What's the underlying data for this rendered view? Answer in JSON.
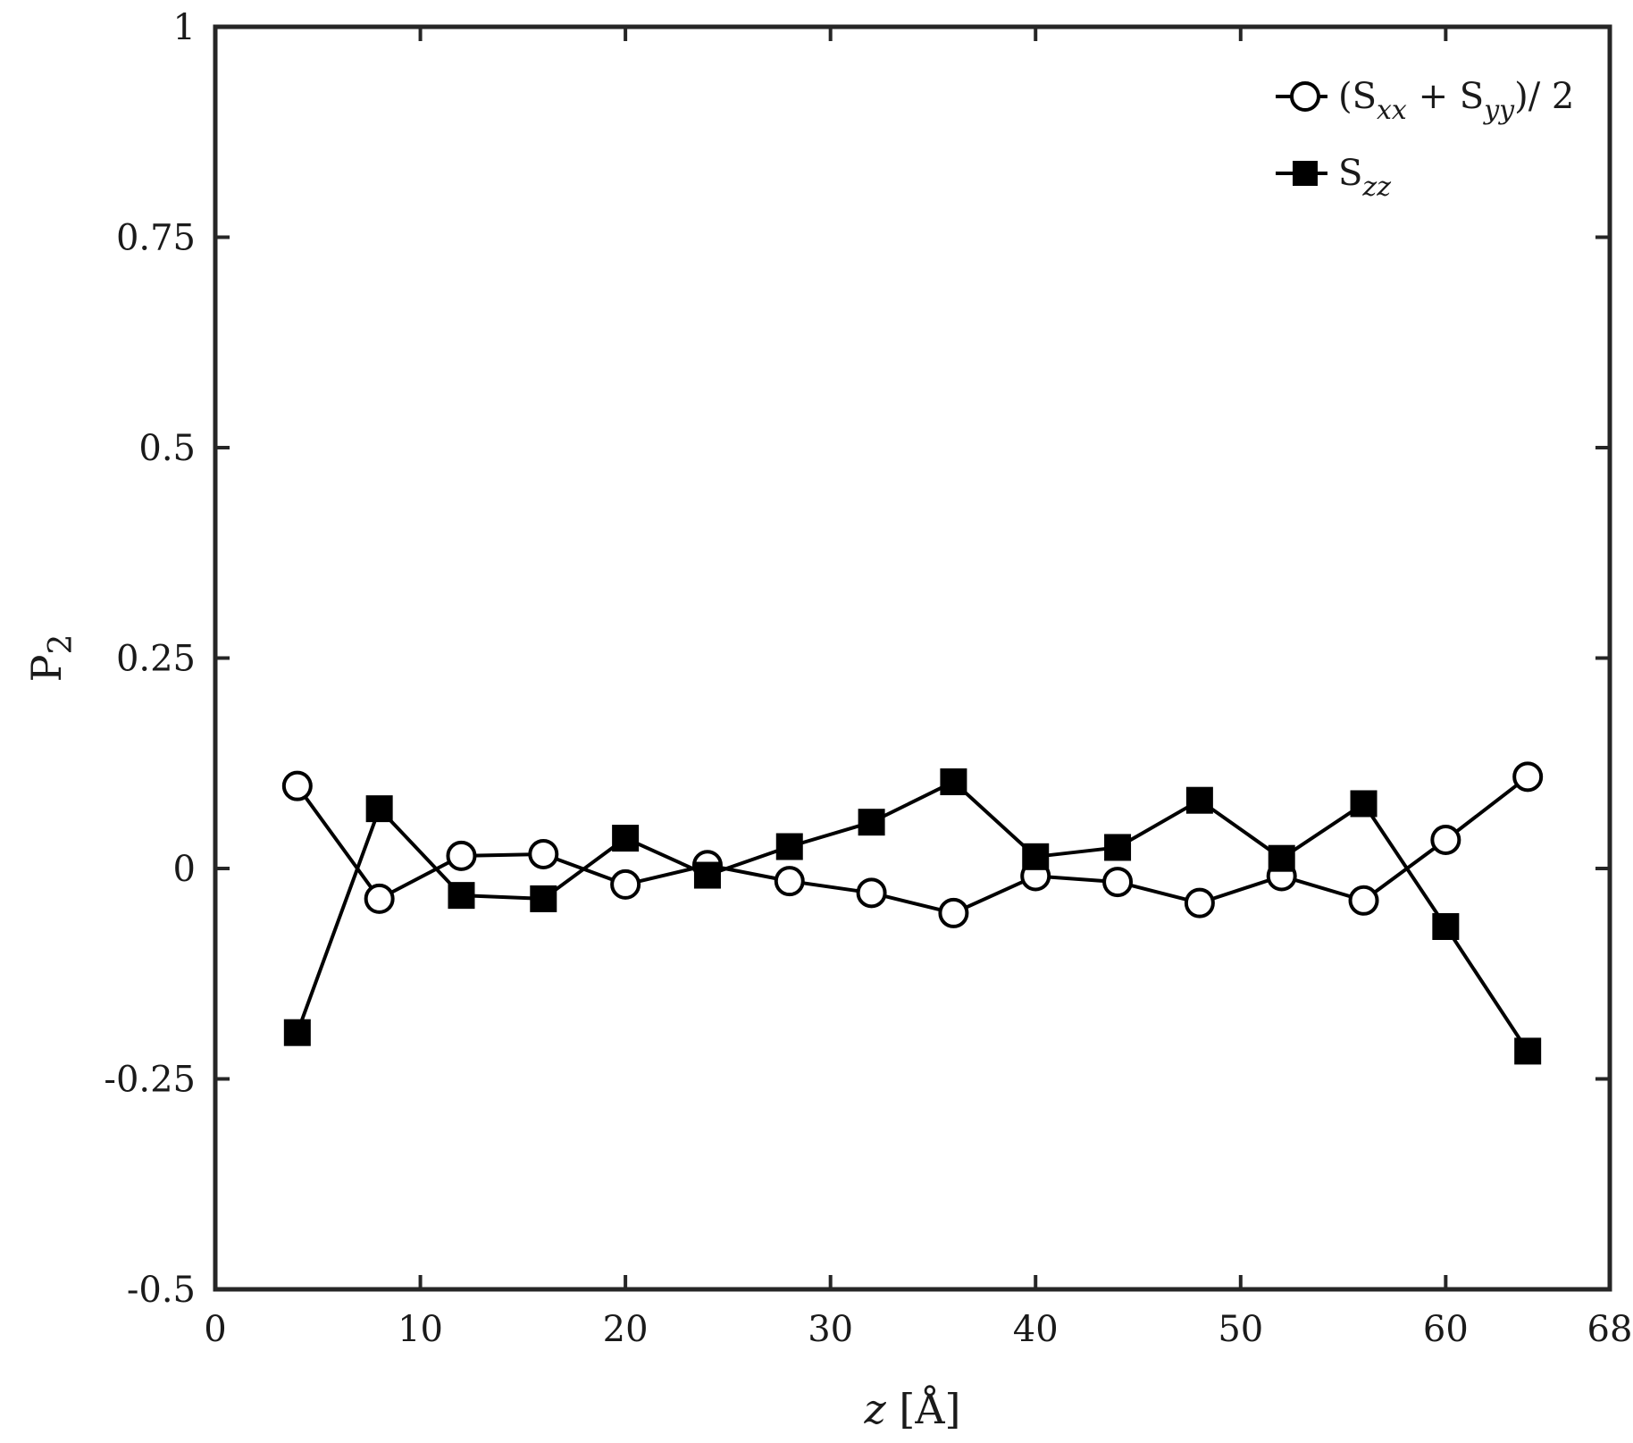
{
  "chart_data": {
    "type": "line",
    "title": "",
    "xlabel": "z [Å]",
    "ylabel": "P2",
    "xlim": [
      0,
      68
    ],
    "ylim": [
      -0.5,
      1
    ],
    "xticks": [
      0,
      10,
      20,
      30,
      40,
      50,
      60,
      68
    ],
    "yticks": [
      -0.5,
      -0.25,
      0,
      0.25,
      0.5,
      0.75,
      1
    ],
    "xtick_labels": [
      "0",
      "10",
      "20",
      "30",
      "40",
      "50",
      "60",
      "68"
    ],
    "ytick_labels": [
      "-0.5",
      "-0.25",
      "0",
      "0.25",
      "0.5",
      "0.75",
      "1"
    ],
    "grid": false,
    "legend_position": "top-right",
    "x": [
      4,
      8,
      12,
      16,
      20,
      24,
      28,
      32,
      36,
      40,
      44,
      48,
      52,
      56,
      60,
      64
    ],
    "series": [
      {
        "name": "(Sxx + Syy)/ 2",
        "marker": "open-circle",
        "values": [
          0.098,
          -0.036,
          0.015,
          0.017,
          -0.019,
          0.004,
          -0.015,
          -0.029,
          -0.053,
          -0.009,
          -0.016,
          -0.041,
          -0.009,
          -0.038,
          0.034,
          0.109
        ]
      },
      {
        "name": "Szz",
        "marker": "filled-square",
        "values": [
          -0.195,
          0.071,
          -0.032,
          -0.036,
          0.036,
          -0.008,
          0.026,
          0.055,
          0.103,
          0.014,
          0.025,
          0.081,
          0.012,
          0.077,
          -0.069,
          -0.217
        ]
      }
    ],
    "colors": {
      "line": "#000000",
      "axis": "#262626",
      "marker_fill_open": "#ffffff",
      "marker_fill_solid": "#000000"
    }
  }
}
